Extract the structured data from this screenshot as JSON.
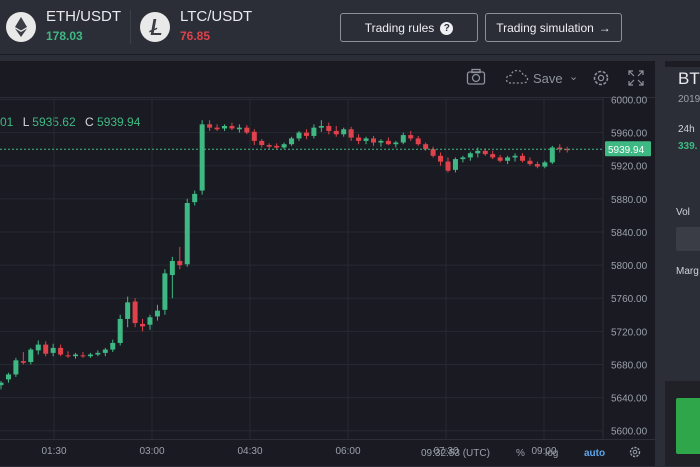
{
  "tickers": [
    {
      "symbol": "ETH/USDT",
      "price": "178.03",
      "color": "#3fb983",
      "icon": "ethereum-icon"
    },
    {
      "symbol": "LTC/USDT",
      "price": "76.85",
      "color": "#e0424c",
      "icon": "litecoin-icon"
    }
  ],
  "buttons": {
    "trading_rules": "Trading rules",
    "trading_simulation": "Trading simulation"
  },
  "toolbar": {
    "save_label": "Save",
    "icons": [
      "camera-icon",
      "cloud-icon",
      "chevron-down-icon",
      "gear-icon",
      "fullscreen-icon"
    ]
  },
  "ohlc": {
    "open_partial": "01",
    "low_key": "L",
    "low_value": "5935.62",
    "close_key": "C",
    "close_value": "5939.94"
  },
  "chart_data": {
    "type": "candlestick",
    "price_axis": [
      "6000.00",
      "5960.00",
      "5920.00",
      "5880.00",
      "5840.00",
      "5800.00",
      "5760.00",
      "5720.00",
      "5680.00",
      "5640.00",
      "5600.00"
    ],
    "time_axis": [
      "01:30",
      "03:00",
      "04:30",
      "06:00",
      "07:30",
      "09:00"
    ],
    "current_price": "5939.94",
    "up_color": "#3fb983",
    "down_color": "#e0424c",
    "ylim": [
      5590,
      6003
    ],
    "candles": [
      [
        5655,
        5660,
        5650,
        5658
      ],
      [
        5662,
        5670,
        5658,
        5668
      ],
      [
        5668,
        5688,
        5665,
        5685
      ],
      [
        5684,
        5695,
        5680,
        5682
      ],
      [
        5683,
        5700,
        5680,
        5698
      ],
      [
        5697,
        5709,
        5692,
        5704
      ],
      [
        5704,
        5708,
        5690,
        5693
      ],
      [
        5694,
        5705,
        5690,
        5700
      ],
      [
        5700,
        5704,
        5690,
        5692
      ],
      [
        5691,
        5696,
        5688,
        5690
      ],
      [
        5690,
        5694,
        5687,
        5692
      ],
      [
        5691,
        5695,
        5688,
        5690
      ],
      [
        5690,
        5694,
        5688,
        5692
      ],
      [
        5692,
        5697,
        5690,
        5694
      ],
      [
        5694,
        5700,
        5690,
        5698
      ],
      [
        5698,
        5710,
        5695,
        5706
      ],
      [
        5706,
        5740,
        5703,
        5735
      ],
      [
        5735,
        5762,
        5725,
        5755
      ],
      [
        5756,
        5760,
        5725,
        5730
      ],
      [
        5729,
        5735,
        5720,
        5726
      ],
      [
        5728,
        5740,
        5722,
        5737
      ],
      [
        5738,
        5752,
        5733,
        5745
      ],
      [
        5746,
        5795,
        5740,
        5790
      ],
      [
        5788,
        5810,
        5760,
        5805
      ],
      [
        5805,
        5822,
        5795,
        5800
      ],
      [
        5801,
        5880,
        5798,
        5875
      ],
      [
        5876,
        5890,
        5872,
        5886
      ],
      [
        5890,
        5975,
        5885,
        5970
      ],
      [
        5970,
        5975,
        5962,
        5966
      ],
      [
        5966,
        5970,
        5962,
        5964
      ],
      [
        5965,
        5970,
        5962,
        5968
      ],
      [
        5968,
        5972,
        5963,
        5965
      ],
      [
        5964,
        5970,
        5960,
        5966
      ],
      [
        5966,
        5969,
        5958,
        5960
      ],
      [
        5961,
        5964,
        5945,
        5950
      ],
      [
        5950,
        5952,
        5942,
        5945
      ],
      [
        5945,
        5947,
        5940,
        5943
      ],
      [
        5944,
        5947,
        5940,
        5942
      ],
      [
        5942,
        5948,
        5940,
        5946
      ],
      [
        5946,
        5955,
        5944,
        5953
      ],
      [
        5953,
        5962,
        5950,
        5960
      ],
      [
        5960,
        5964,
        5952,
        5956
      ],
      [
        5956,
        5970,
        5953,
        5966
      ],
      [
        5966,
        5975,
        5961,
        5968
      ],
      [
        5968,
        5972,
        5958,
        5962
      ],
      [
        5962,
        5968,
        5955,
        5958
      ],
      [
        5958,
        5966,
        5955,
        5964
      ],
      [
        5964,
        5967,
        5950,
        5954
      ],
      [
        5954,
        5958,
        5946,
        5950
      ],
      [
        5950,
        5955,
        5946,
        5953
      ],
      [
        5953,
        5956,
        5944,
        5948
      ],
      [
        5948,
        5952,
        5943,
        5950
      ],
      [
        5950,
        5954,
        5945,
        5946
      ],
      [
        5946,
        5950,
        5942,
        5948
      ],
      [
        5948,
        5960,
        5946,
        5957
      ],
      [
        5957,
        5962,
        5950,
        5953
      ],
      [
        5953,
        5956,
        5944,
        5946
      ],
      [
        5946,
        5948,
        5938,
        5940
      ],
      [
        5940,
        5943,
        5930,
        5932
      ],
      [
        5932,
        5936,
        5920,
        5925
      ],
      [
        5925,
        5930,
        5912,
        5914
      ],
      [
        5915,
        5930,
        5912,
        5928
      ],
      [
        5928,
        5932,
        5924,
        5930
      ],
      [
        5930,
        5937,
        5926,
        5935
      ],
      [
        5935,
        5942,
        5930,
        5938
      ],
      [
        5938,
        5941,
        5932,
        5934
      ],
      [
        5934,
        5938,
        5928,
        5930
      ],
      [
        5930,
        5933,
        5924,
        5926
      ],
      [
        5926,
        5932,
        5922,
        5930
      ],
      [
        5930,
        5935,
        5925,
        5932
      ],
      [
        5932,
        5935,
        5924,
        5926
      ],
      [
        5926,
        5930,
        5920,
        5922
      ],
      [
        5922,
        5925,
        5917,
        5919
      ],
      [
        5919,
        5926,
        5917,
        5924
      ],
      [
        5924,
        5944,
        5922,
        5942
      ],
      [
        5942,
        5946,
        5936,
        5940
      ],
      [
        5940,
        5943,
        5936,
        5939.94
      ]
    ]
  },
  "bottombar": {
    "time": "09:32:53 (UTC)",
    "percent": "%",
    "log": "log",
    "auto": "auto"
  },
  "right_panel": {
    "title_partial": "BT",
    "date_partial": "2019",
    "h24_label": "24h",
    "value_partial": "339.",
    "vol_label": "Vol",
    "margin_label": "Marg"
  }
}
